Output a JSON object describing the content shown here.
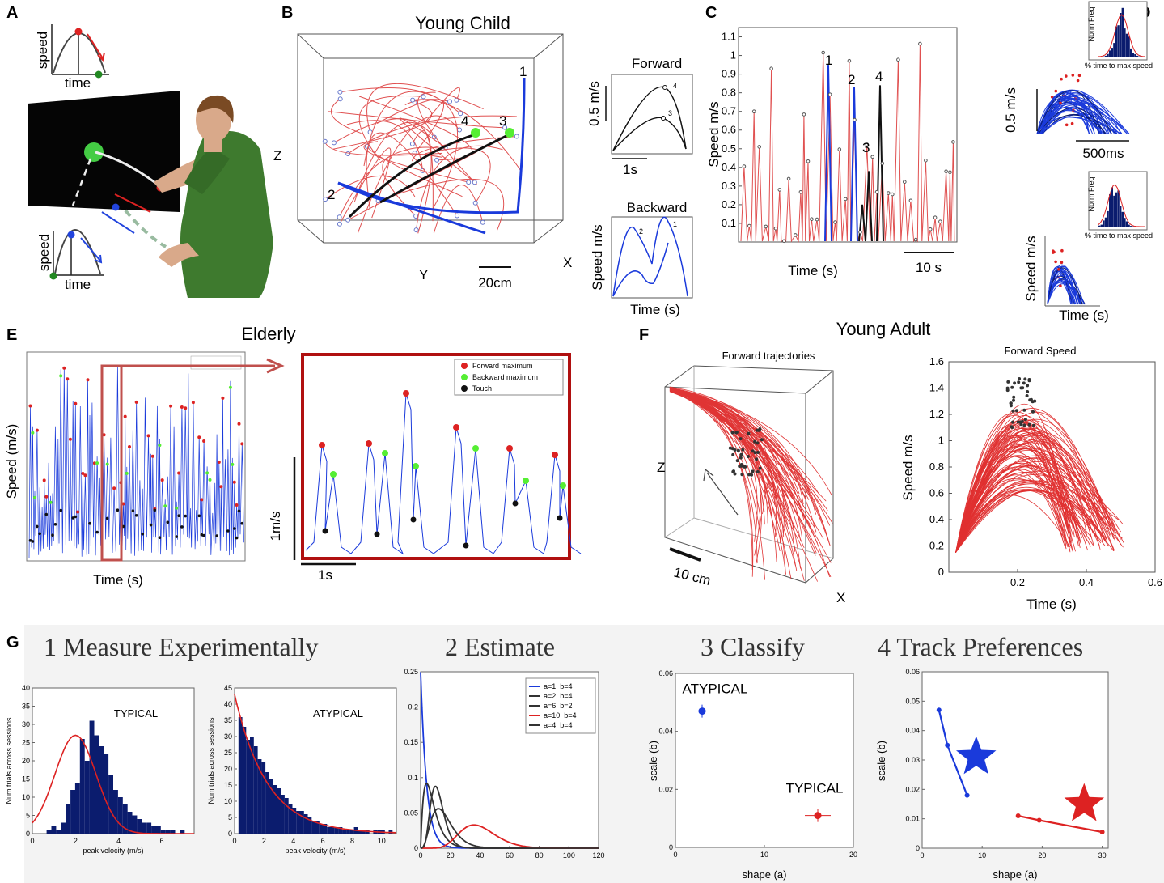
{
  "panels": {
    "a": {
      "label": "A",
      "speed": "speed",
      "time": "time"
    },
    "b": {
      "label": "B",
      "title": "Young Child",
      "z": "Z",
      "y": "Y",
      "x": "X",
      "scale": "20cm",
      "marks": [
        "1",
        "2",
        "3",
        "4"
      ],
      "forward_title": "Forward",
      "forward_scale": "0.5 m/s",
      "forward_time": "1s",
      "backward_title": "Backward",
      "backward_ylabel": "Speed m/s",
      "backward_xlabel": "Time (s)"
    },
    "c": {
      "label": "C",
      "ylabel": "Speed m/s",
      "xlabel": "Time (s)",
      "scale": "10 s",
      "marks": [
        "1",
        "2",
        "3",
        "4"
      ]
    },
    "d": {
      "label": "D",
      "scale_v": "0.5 m/s",
      "scale_h": "500ms",
      "ylabel": "Speed m/s",
      "xlabel": "Time (s)",
      "hist_ylabel": "Norm Freq",
      "hist_xlabel": "% time to max speed"
    },
    "e": {
      "label": "E",
      "title": "Elderly",
      "ylabel": "Speed (m/s)",
      "xlabel": "Time (s)",
      "scale_v": "1m/s",
      "scale_h": "1s",
      "legend": [
        "Forward maximum",
        "Backward maximum",
        "Touch"
      ]
    },
    "f": {
      "label": "F",
      "title": "Young Adult",
      "traj_title": "Forward trajectories",
      "speed_title": "Forward Speed",
      "z": "Z",
      "x": "X",
      "scale": "10 cm",
      "ylabel": "Speed m/s",
      "xlabel": "Time (s)"
    },
    "g": {
      "label": "G",
      "h1": "1 Measure Experimentally",
      "h2": "2 Estimate",
      "h3": "3 Classify",
      "h4": "4 Track Preferences"
    }
  },
  "chart_data": [
    {
      "id": "f-speed",
      "type": "line",
      "title": "Forward Speed",
      "xlabel": "Time (s)",
      "ylabel": "Speed m/s",
      "xlim": [
        0,
        0.6
      ],
      "ylim": [
        0,
        1.6
      ],
      "xticks": [
        "0.2",
        "0.4",
        "0.6"
      ],
      "yticks": [
        "0",
        "0.2",
        "0.4",
        "0.6",
        "0.8",
        "1",
        "1.2",
        "1.4",
        "1.6"
      ]
    },
    {
      "id": "c-speed",
      "type": "line",
      "xlabel": "Time (s)",
      "ylabel": "Speed m/s",
      "ylim": [
        0,
        1.15
      ],
      "yticks": [
        "0.1",
        "0.2",
        "0.3",
        "0.4",
        "0.5",
        "0.6",
        "0.7",
        "0.8",
        "0.9",
        "1",
        "1.1"
      ]
    },
    {
      "id": "g-typical",
      "type": "bar",
      "title": "TYPICAL",
      "xlabel": "peak velocity (m/s)",
      "ylabel": "Num trials across sessions",
      "xlim": [
        0,
        7.5
      ],
      "ylim": [
        0,
        40
      ],
      "xticks": [
        "0",
        "2",
        "4",
        "6"
      ],
      "yticks": [
        "0",
        "5",
        "10",
        "15",
        "20",
        "25",
        "30",
        "35",
        "40"
      ],
      "values": [
        0,
        0,
        1,
        2,
        1,
        3,
        8,
        12,
        14,
        26,
        20,
        31,
        27,
        24,
        22,
        16,
        12,
        10,
        8,
        6,
        5,
        4,
        3,
        3,
        2,
        2,
        1,
        1,
        1,
        0,
        1,
        0
      ]
    },
    {
      "id": "g-atypical",
      "type": "bar",
      "title": "ATYPICAL",
      "xlabel": "peak velocity (m/s)",
      "ylabel": "Num trials across sessions",
      "xlim": [
        0,
        11
      ],
      "ylim": [
        0,
        45
      ],
      "xticks": [
        "0",
        "2",
        "4",
        "6",
        "8",
        "10"
      ],
      "yticks": [
        "0",
        "5",
        "10",
        "15",
        "20",
        "25",
        "30",
        "35",
        "40",
        "45"
      ],
      "values": [
        36,
        33,
        29,
        30,
        27,
        23,
        22,
        19,
        17,
        15,
        14,
        12,
        11,
        9,
        8,
        7,
        7,
        6,
        5,
        4,
        4,
        3,
        3,
        2,
        2,
        2,
        2,
        1,
        1,
        1,
        2,
        1,
        1,
        1,
        0,
        1,
        1,
        1,
        0,
        1
      ]
    },
    {
      "id": "g-estimate",
      "type": "line",
      "xlim": [
        0,
        120
      ],
      "ylim": [
        0,
        0.25
      ],
      "xticks": [
        "0",
        "20",
        "40",
        "60",
        "80",
        "100",
        "120"
      ],
      "yticks": [
        "0",
        "0.05",
        "0.1",
        "0.15",
        "0.2",
        "0.25"
      ],
      "series": [
        {
          "name": "a=1;  b=4",
          "a": 1,
          "b": 4,
          "color": "#1a3adb"
        },
        {
          "name": "a=2;  b=4",
          "a": 2,
          "b": 4,
          "color": "#333333"
        },
        {
          "name": "a=6;  b=2",
          "a": 6,
          "b": 2,
          "color": "#333333"
        },
        {
          "name": "a=10; b=4",
          "a": 10,
          "b": 4,
          "color": "#dd2222"
        },
        {
          "name": "a=4;  b=4",
          "a": 4,
          "b": 4,
          "color": "#333333"
        }
      ]
    },
    {
      "id": "g-classify",
      "type": "scatter",
      "xlabel": "shape (a)",
      "ylabel": "scale (b)",
      "xlim": [
        0,
        20
      ],
      "ylim": [
        0,
        0.06
      ],
      "xticks": [
        "0",
        "10",
        "20"
      ],
      "yticks": [
        "0",
        "0.02",
        "0.04",
        "0.06"
      ],
      "points": [
        {
          "label": "ATYPICAL",
          "x": 3,
          "y": 0.047,
          "color": "#1a3adb"
        },
        {
          "label": "TYPICAL",
          "x": 16,
          "y": 0.011,
          "color": "#dd2222"
        }
      ]
    },
    {
      "id": "g-track",
      "type": "line",
      "xlabel": "shape (a)",
      "ylabel": "scale (b)",
      "xlim": [
        0,
        31
      ],
      "ylim": [
        0,
        0.06
      ],
      "xticks": [
        "0",
        "10",
        "20",
        "30"
      ],
      "yticks": [
        "0",
        "0.01",
        "0.02",
        "0.03",
        "0.04",
        "0.05",
        "0.06"
      ],
      "series": [
        {
          "name": "atypical",
          "color": "#1a3adb",
          "x": [
            2.8,
            4.2,
            7.5
          ],
          "y": [
            0.047,
            0.035,
            0.018
          ],
          "star": [
            9,
            0.031
          ]
        },
        {
          "name": "typical",
          "color": "#dd2222",
          "x": [
            16,
            19.5,
            30
          ],
          "y": [
            0.011,
            0.0095,
            0.0055
          ],
          "star": [
            27,
            0.015
          ]
        }
      ]
    }
  ],
  "colors": {
    "blue": "#1a3adb",
    "red": "#dd2222",
    "navy": "#0b1c6e",
    "green": "#55ee33",
    "darkred": "#b01010",
    "traj": "#e05050"
  }
}
